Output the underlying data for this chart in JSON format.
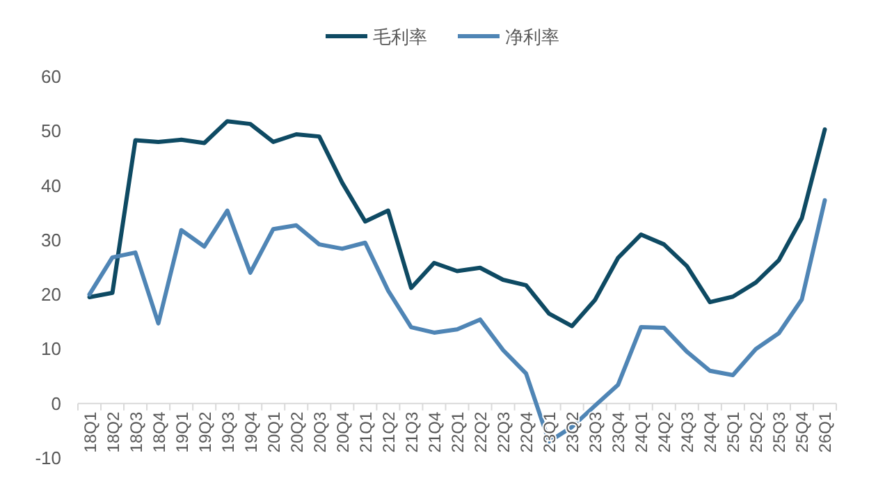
{
  "chart_data": {
    "type": "line",
    "categories": [
      "18Q1",
      "18Q2",
      "18Q3",
      "18Q4",
      "19Q1",
      "19Q2",
      "19Q3",
      "19Q4",
      "20Q1",
      "20Q2",
      "20Q3",
      "20Q4",
      "21Q1",
      "21Q2",
      "21Q3",
      "21Q4",
      "22Q1",
      "22Q2",
      "22Q3",
      "22Q4",
      "23Q1",
      "23Q2",
      "23Q3",
      "23Q4",
      "24Q1",
      "24Q2",
      "24Q3",
      "24Q4",
      "25Q1",
      "25Q2",
      "25Q3",
      "25Q4",
      "26Q1"
    ],
    "series": [
      {
        "name": "毛利率",
        "color": "#0e4a63",
        "values": [
          19.5,
          20.3,
          48.3,
          48,
          48.4,
          47.8,
          51.8,
          51.3,
          48,
          49.4,
          49,
          40.5,
          33.4,
          35.4,
          21.2,
          25.8,
          24.3,
          24.9,
          22.7,
          21.7,
          16.5,
          14.2,
          19,
          26.7,
          31,
          29.2,
          25.2,
          18.6,
          19.6,
          22.2,
          26.3,
          34,
          50.3
        ]
      },
      {
        "name": "净利率",
        "color": "#4f85b5",
        "values": [
          20,
          26.8,
          27.7,
          14.7,
          31.8,
          28.8,
          35.4,
          24,
          32,
          32.7,
          29.2,
          28.4,
          29.5,
          20.7,
          14,
          13,
          13.6,
          15.4,
          9.8,
          5.5,
          -7,
          -4.3,
          -0.4,
          3.4,
          14,
          13.9,
          9.5,
          6,
          5.2,
          10,
          12.9,
          19.1,
          37.3
        ]
      }
    ],
    "ylim": [
      -10,
      60
    ],
    "yticks": [
      -10,
      0,
      10,
      20,
      30,
      40,
      50,
      60
    ],
    "legend": "top",
    "grid": false
  }
}
